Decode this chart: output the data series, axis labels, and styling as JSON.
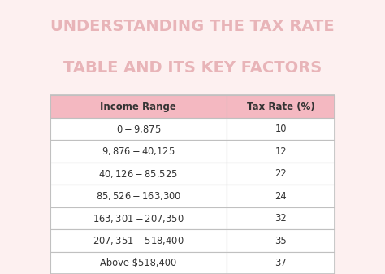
{
  "title_line1": "UNDERSTANDING THE TAX RATE",
  "title_line2": "TABLE AND ITS KEY FACTORS",
  "title_color": "#e8b4b8",
  "bg_color": "#fdf0f0",
  "table_bg": "#ffffff",
  "header_bg": "#f4b8c1",
  "col_headers": [
    "Income Range",
    "Tax Rate (%)"
  ],
  "rows": [
    [
      "$0 - $9,875",
      "10"
    ],
    [
      "$9,876 - $40,125",
      "12"
    ],
    [
      "$40,126 - $85,525",
      "22"
    ],
    [
      "$85,526 - $163,300",
      "24"
    ],
    [
      "$163,301 - $207,350",
      "32"
    ],
    [
      "$207,351 - $518,400",
      "35"
    ],
    [
      "Above $518,400",
      "37"
    ]
  ],
  "grid_color": "#c0c0c0",
  "text_color": "#333333",
  "header_text_color": "#333333"
}
